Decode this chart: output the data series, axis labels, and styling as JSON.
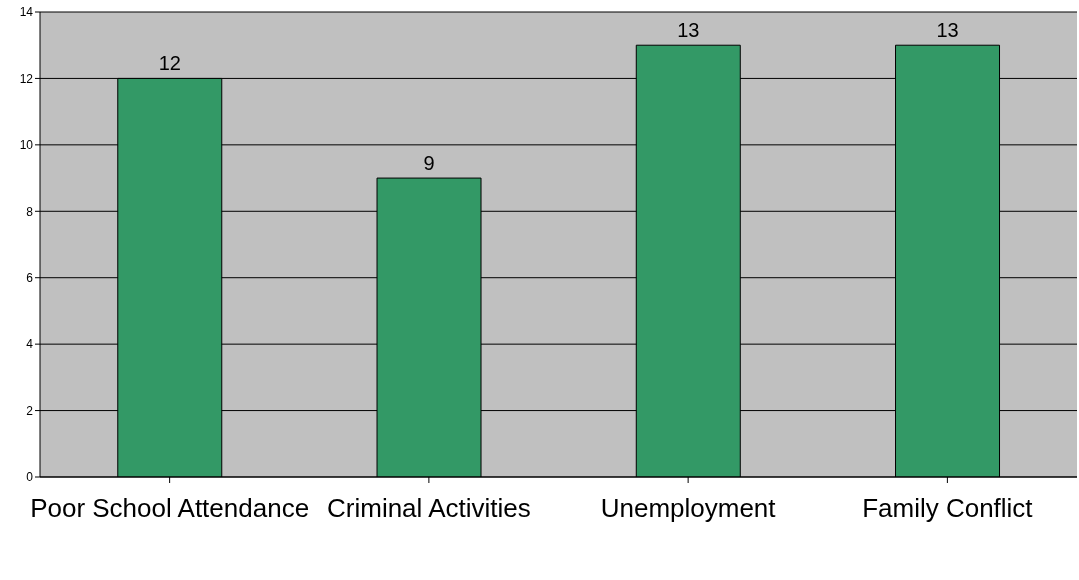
{
  "chart_data": {
    "type": "bar",
    "categories": [
      "Poor School Attendance",
      "Criminal Activities",
      "Unemployment",
      "Family Conflict"
    ],
    "values": [
      12,
      9,
      13,
      13
    ],
    "color": "#339966",
    "ylim": [
      0,
      14
    ],
    "yticks": [
      0,
      2,
      4,
      6,
      8,
      10,
      12,
      14
    ],
    "grid": "y",
    "data_labels": true
  }
}
